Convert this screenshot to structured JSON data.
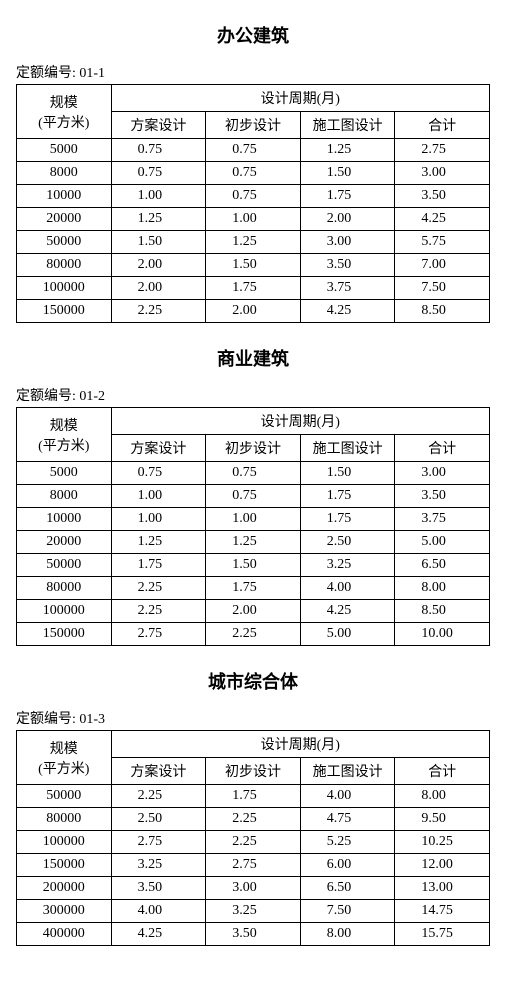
{
  "global": {
    "code_prefix": "定额编号:",
    "scale_header_l1": "规模",
    "scale_header_l2": "(平方米)",
    "period_header": "设计周期(月)",
    "col_scheme": "方案设计",
    "col_prelim": "初步设计",
    "col_construct": "施工图设计",
    "col_total": "合计"
  },
  "tables": [
    {
      "title": "办公建筑",
      "code": "01-1",
      "rows": [
        {
          "scale": "5000",
          "a": "0.75",
          "b": "0.75",
          "c": "1.25",
          "d": "2.75"
        },
        {
          "scale": "8000",
          "a": "0.75",
          "b": "0.75",
          "c": "1.50",
          "d": "3.00"
        },
        {
          "scale": "10000",
          "a": "1.00",
          "b": "0.75",
          "c": "1.75",
          "d": "3.50"
        },
        {
          "scale": "20000",
          "a": "1.25",
          "b": "1.00",
          "c": "2.00",
          "d": "4.25"
        },
        {
          "scale": "50000",
          "a": "1.50",
          "b": "1.25",
          "c": "3.00",
          "d": "5.75"
        },
        {
          "scale": "80000",
          "a": "2.00",
          "b": "1.50",
          "c": "3.50",
          "d": "7.00"
        },
        {
          "scale": "100000",
          "a": "2.00",
          "b": "1.75",
          "c": "3.75",
          "d": "7.50"
        },
        {
          "scale": "150000",
          "a": "2.25",
          "b": "2.00",
          "c": "4.25",
          "d": "8.50"
        }
      ]
    },
    {
      "title": "商业建筑",
      "code": "01-2",
      "rows": [
        {
          "scale": "5000",
          "a": "0.75",
          "b": "0.75",
          "c": "1.50",
          "d": "3.00"
        },
        {
          "scale": "8000",
          "a": "1.00",
          "b": "0.75",
          "c": "1.75",
          "d": "3.50"
        },
        {
          "scale": "10000",
          "a": "1.00",
          "b": "1.00",
          "c": "1.75",
          "d": "3.75"
        },
        {
          "scale": "20000",
          "a": "1.25",
          "b": "1.25",
          "c": "2.50",
          "d": "5.00"
        },
        {
          "scale": "50000",
          "a": "1.75",
          "b": "1.50",
          "c": "3.25",
          "d": "6.50"
        },
        {
          "scale": "80000",
          "a": "2.25",
          "b": "1.75",
          "c": "4.00",
          "d": "8.00"
        },
        {
          "scale": "100000",
          "a": "2.25",
          "b": "2.00",
          "c": "4.25",
          "d": "8.50"
        },
        {
          "scale": "150000",
          "a": "2.75",
          "b": "2.25",
          "c": "5.00",
          "d": "10.00"
        }
      ]
    },
    {
      "title": "城市综合体",
      "code": "01-3",
      "rows": [
        {
          "scale": "50000",
          "a": "2.25",
          "b": "1.75",
          "c": "4.00",
          "d": "8.00"
        },
        {
          "scale": "80000",
          "a": "2.50",
          "b": "2.25",
          "c": "4.75",
          "d": "9.50"
        },
        {
          "scale": "100000",
          "a": "2.75",
          "b": "2.25",
          "c": "5.25",
          "d": "10.25"
        },
        {
          "scale": "150000",
          "a": "3.25",
          "b": "2.75",
          "c": "6.00",
          "d": "12.00"
        },
        {
          "scale": "200000",
          "a": "3.50",
          "b": "3.00",
          "c": "6.50",
          "d": "13.00"
        },
        {
          "scale": "300000",
          "a": "4.00",
          "b": "3.25",
          "c": "7.50",
          "d": "14.75"
        },
        {
          "scale": "400000",
          "a": "4.25",
          "b": "3.50",
          "c": "8.00",
          "d": "15.75"
        }
      ]
    }
  ]
}
